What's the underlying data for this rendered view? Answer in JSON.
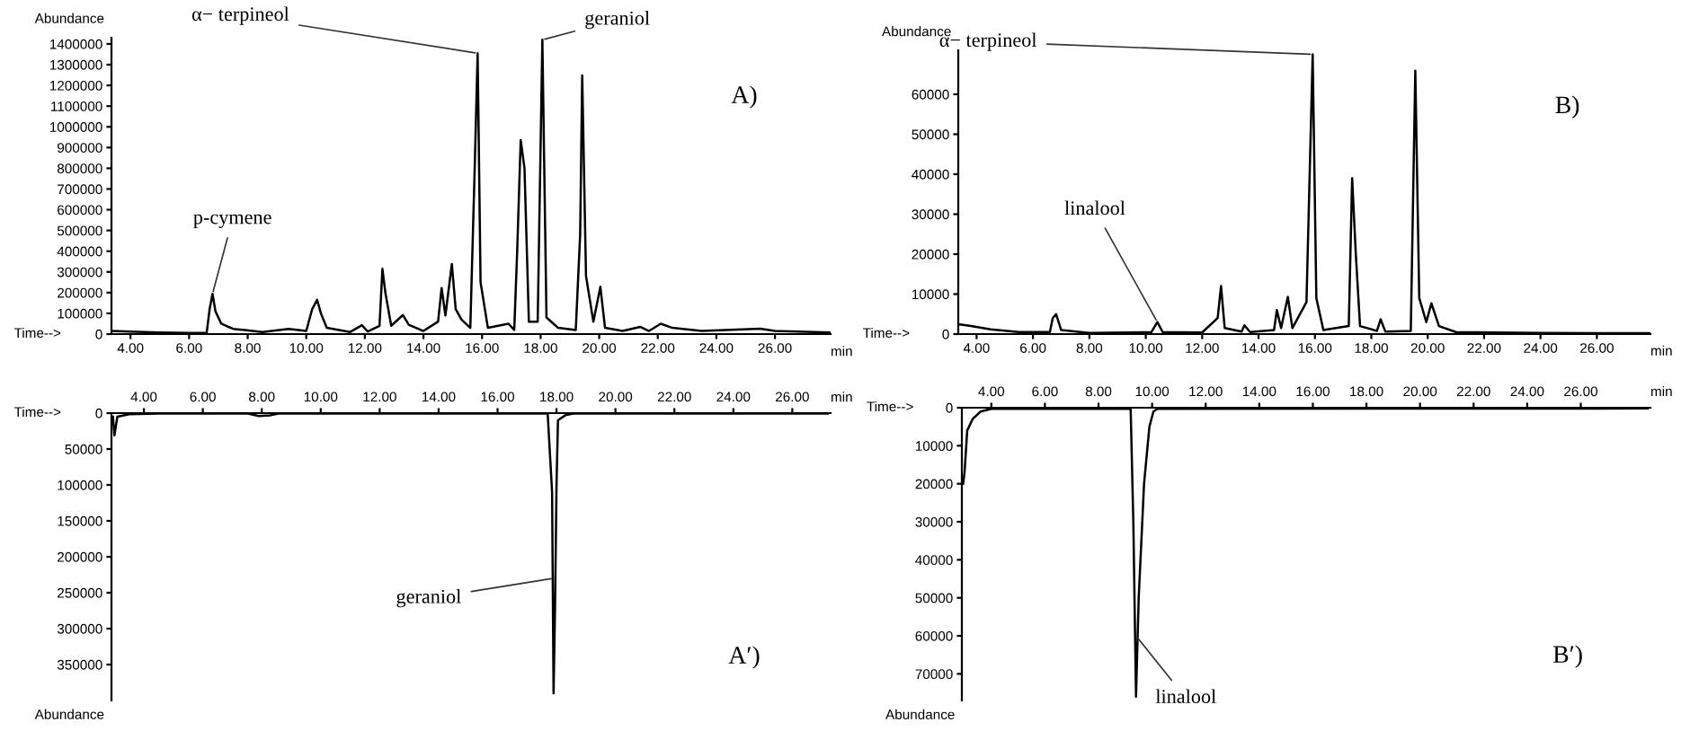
{
  "chart_data": [
    {
      "type": "line",
      "ylabel": "Abundance",
      "xlabel": "min",
      "annotations": [
        "Time-->",
        "A)",
        {
          "text": "p-cymene",
          "x": 6.8,
          "y": 194000
        },
        {
          "text": "α− terpineol",
          "x": 15.85,
          "y": 1355000
        },
        {
          "text": "geraniol",
          "x": 18.06,
          "y": 1420000
        }
      ],
      "xlim": [
        3.35,
        27.9
      ],
      "xticks": [
        {
          "value": 4,
          "label": "4.00"
        },
        {
          "value": 6,
          "label": "6.00"
        },
        {
          "value": 8,
          "label": "8.00"
        },
        {
          "value": 10,
          "label": "10.00"
        },
        {
          "value": 12,
          "label": "12.00"
        },
        {
          "value": 14,
          "label": "14.00"
        },
        {
          "value": 16,
          "label": "16.00"
        },
        {
          "value": 18,
          "label": "18.00"
        },
        {
          "value": 20,
          "label": "20.00"
        },
        {
          "value": 22,
          "label": "22.00"
        },
        {
          "value": 24,
          "label": "24.00"
        },
        {
          "value": 26,
          "label": "26.00"
        }
      ],
      "ylim": [
        0,
        1430000
      ],
      "yticks": [
        0,
        100000,
        200000,
        300000,
        400000,
        500000,
        600000,
        700000,
        800000,
        900000,
        1000000,
        1100000,
        1200000,
        1300000,
        1400000
      ],
      "grid": false,
      "legend": false,
      "series": [
        {
          "color": "#000000",
          "x": [
            3.35,
            4.0,
            5.0,
            6.0,
            6.6,
            6.7,
            6.8,
            6.9,
            7.1,
            7.5,
            7.9,
            8.5,
            9.4,
            10.0,
            10.2,
            10.37,
            10.5,
            10.7,
            11.5,
            11.9,
            12.1,
            12.5,
            12.6,
            12.7,
            12.9,
            13.3,
            13.5,
            14.0,
            14.5,
            14.62,
            14.75,
            14.97,
            15.1,
            15.3,
            15.6,
            15.75,
            15.85,
            15.95,
            16.2,
            16.9,
            17.1,
            17.2,
            17.32,
            17.45,
            17.6,
            17.9,
            18.06,
            18.2,
            18.6,
            19.2,
            19.35,
            19.42,
            19.55,
            19.8,
            20.04,
            20.2,
            20.8,
            21.4,
            21.7,
            22.1,
            22.5,
            23.5,
            25.5,
            26.0,
            27.9
          ],
          "values": [
            15000,
            12000,
            8000,
            5000,
            6000,
            120000,
            194000,
            110000,
            50000,
            25000,
            20000,
            10000,
            25000,
            15000,
            120000,
            165000,
            100000,
            30000,
            10000,
            43000,
            12000,
            40000,
            315000,
            200000,
            40000,
            92000,
            45000,
            15000,
            60000,
            222000,
            90000,
            338000,
            121000,
            70000,
            30000,
            800000,
            1355000,
            250000,
            30000,
            50000,
            20000,
            400000,
            936000,
            800000,
            60000,
            60000,
            1420000,
            80000,
            30000,
            20000,
            480000,
            1248000,
            280000,
            60000,
            228000,
            30000,
            15000,
            35000,
            15000,
            50000,
            30000,
            15000,
            26000,
            15000,
            8000
          ]
        }
      ]
    },
    {
      "type": "line",
      "ylabel": "Abundance",
      "xlabel": "min",
      "annotations": [
        "Time-->",
        "B)",
        {
          "text": "α− terpineol",
          "x": 15.92,
          "y": 70000
        },
        {
          "text": "linalool",
          "x": 10.41,
          "y": 3000
        }
      ],
      "xlim": [
        3.35,
        27.9
      ],
      "xticks": [
        {
          "value": 4,
          "label": "4.00"
        },
        {
          "value": 6,
          "label": "6.00"
        },
        {
          "value": 8,
          "label": "8.00"
        },
        {
          "value": 10,
          "label": "10.00"
        },
        {
          "value": 12,
          "label": "12.00"
        },
        {
          "value": 14,
          "label": "14.00"
        },
        {
          "value": 16,
          "label": "16.00"
        },
        {
          "value": 18,
          "label": "18.00"
        },
        {
          "value": 20,
          "label": "20.00"
        },
        {
          "value": 22,
          "label": "22.00"
        },
        {
          "value": 24,
          "label": "24.00"
        },
        {
          "value": 26,
          "label": "26.00"
        }
      ],
      "ylim": [
        0,
        71000
      ],
      "yticks": [
        0,
        10000,
        20000,
        30000,
        40000,
        50000,
        60000
      ],
      "grid": false,
      "legend": false,
      "series": [
        {
          "color": "#000000",
          "x": [
            3.35,
            3.8,
            4.5,
            5.5,
            6.6,
            6.7,
            6.82,
            7.0,
            8.0,
            10.2,
            10.41,
            10.6,
            12.0,
            12.55,
            12.67,
            12.8,
            13.4,
            13.5,
            13.7,
            14.55,
            14.65,
            14.8,
            15.04,
            15.2,
            15.7,
            15.92,
            16.05,
            16.3,
            17.2,
            17.32,
            17.45,
            17.6,
            18.2,
            18.33,
            18.5,
            19.4,
            19.56,
            19.7,
            19.95,
            20.13,
            20.4,
            21.0,
            24.0,
            27.9
          ],
          "values": [
            2500,
            2000,
            1200,
            500,
            500,
            4000,
            5000,
            1000,
            300,
            500,
            3000,
            500,
            400,
            4000,
            12000,
            1500,
            600,
            2200,
            500,
            1000,
            6000,
            1500,
            9300,
            1500,
            8000,
            70000,
            9000,
            1000,
            2000,
            39000,
            20000,
            2000,
            800,
            3700,
            600,
            800,
            65900,
            9000,
            3000,
            7700,
            2000,
            500,
            300,
            200
          ]
        }
      ]
    },
    {
      "type": "line",
      "ylabel": "Abundance",
      "xlabel": "min",
      "annotations": [
        "Time-->",
        "A′)",
        {
          "text": "geraniol",
          "x": 17.9,
          "y": 230000
        }
      ],
      "xlim": [
        2.9,
        27.3
      ],
      "xticks": [
        {
          "value": 4,
          "label": "4.00"
        },
        {
          "value": 6,
          "label": "6.00"
        },
        {
          "value": 8,
          "label": "8.00"
        },
        {
          "value": 10,
          "label": "10.00"
        },
        {
          "value": 12,
          "label": "12.00"
        },
        {
          "value": 14,
          "label": "14.00"
        },
        {
          "value": 16,
          "label": "16.00"
        },
        {
          "value": 18,
          "label": "18.00"
        },
        {
          "value": 20,
          "label": "20.00"
        },
        {
          "value": 22,
          "label": "22.00"
        },
        {
          "value": 24,
          "label": "24.00"
        },
        {
          "value": 26,
          "label": "26.00"
        }
      ],
      "ylim": [
        400000,
        0
      ],
      "yticks": [
        0,
        50000,
        100000,
        150000,
        200000,
        250000,
        300000,
        350000
      ],
      "grid": false,
      "legend": false,
      "series": [
        {
          "color": "#000000",
          "x": [
            2.95,
            3.0,
            3.1,
            3.5,
            4.5,
            7.5,
            7.9,
            8.3,
            8.6,
            17.7,
            17.85,
            17.9,
            17.95,
            18.0,
            18.05,
            18.3,
            18.6,
            27.2
          ],
          "values": [
            5000,
            31000,
            5000,
            1500,
            500,
            500,
            4000,
            3000,
            500,
            500,
            110000,
            390000,
            270000,
            100000,
            10000,
            3000,
            500,
            500
          ]
        }
      ]
    },
    {
      "type": "line",
      "ylabel": "Abundance",
      "xlabel": "min",
      "annotations": [
        "Time-->",
        "B′)",
        {
          "text": "linalool",
          "x": 9.4,
          "y": 60000
        }
      ],
      "xlim": [
        2.9,
        28.6
      ],
      "xticks": [
        {
          "value": 4,
          "label": "4.00"
        },
        {
          "value": 6,
          "label": "6.00"
        },
        {
          "value": 8,
          "label": "8.00"
        },
        {
          "value": 10,
          "label": "10.00"
        },
        {
          "value": 12,
          "label": "12.00"
        },
        {
          "value": 14,
          "label": "14.00"
        },
        {
          "value": 16,
          "label": "16.00"
        },
        {
          "value": 18,
          "label": "18.00"
        },
        {
          "value": 20,
          "label": "20.00"
        },
        {
          "value": 22,
          "label": "22.00"
        },
        {
          "value": 24,
          "label": "24.00"
        },
        {
          "value": 26,
          "label": "26.00"
        }
      ],
      "ylim": [
        77000,
        0
      ],
      "yticks": [
        0,
        10000,
        20000,
        30000,
        40000,
        50000,
        60000,
        70000
      ],
      "grid": false,
      "legend": false,
      "series": [
        {
          "color": "#000000",
          "x": [
            2.95,
            3.0,
            3.1,
            3.3,
            3.6,
            4.0,
            9.2,
            9.3,
            9.4,
            9.5,
            9.7,
            9.9,
            10.05,
            10.2,
            28.5
          ],
          "values": [
            20000,
            17000,
            6000,
            3000,
            1000,
            300,
            300,
            30000,
            76000,
            50000,
            20000,
            5000,
            1000,
            300,
            200
          ]
        }
      ]
    }
  ]
}
